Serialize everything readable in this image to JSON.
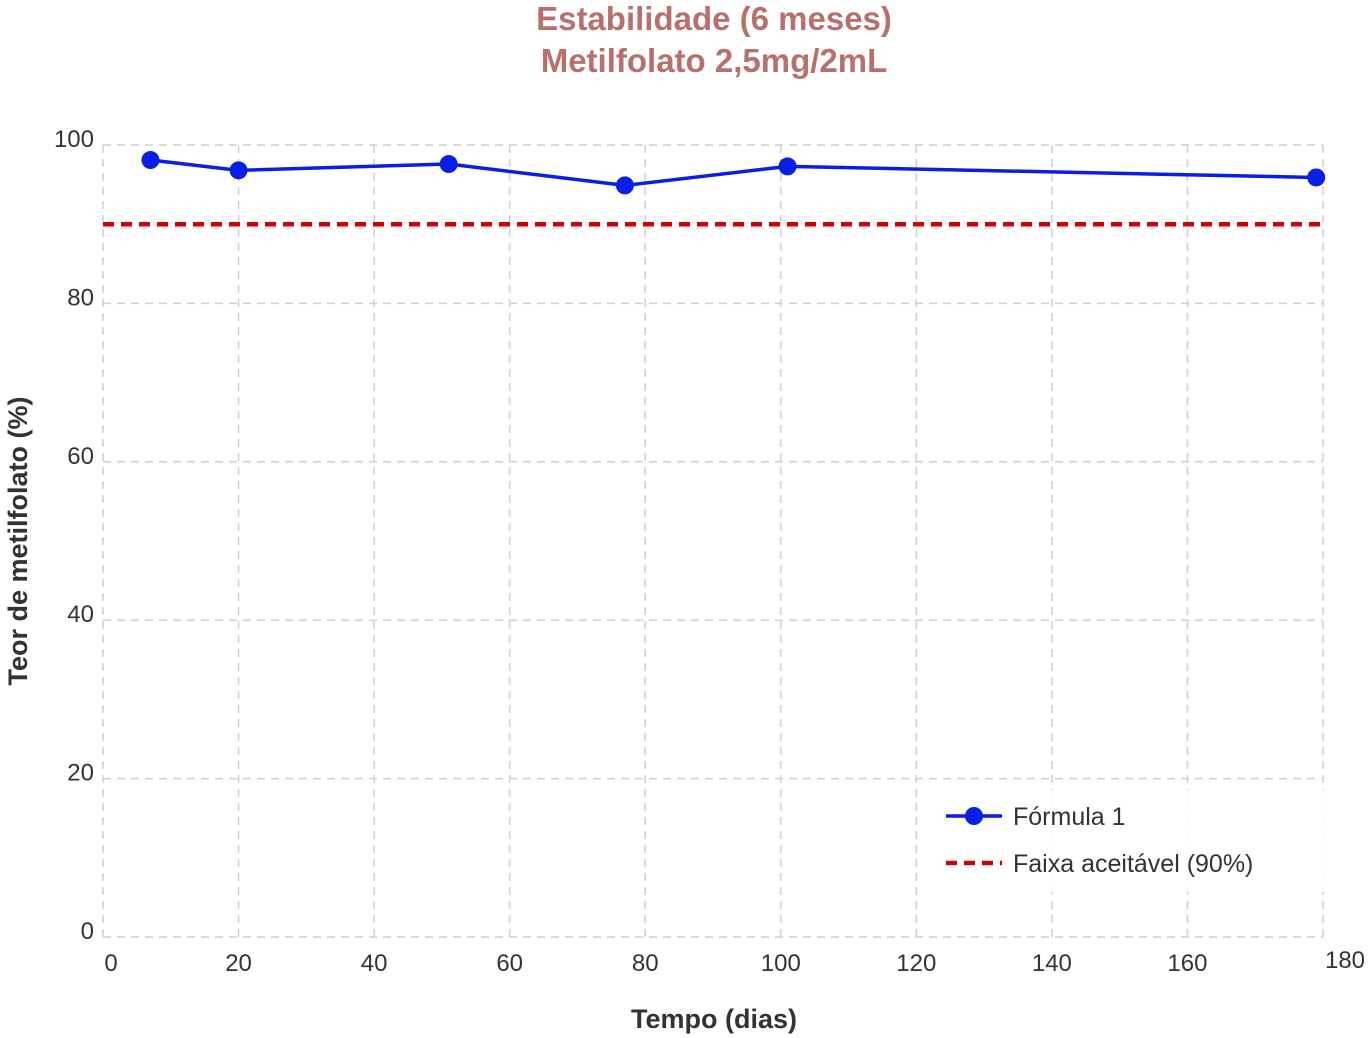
{
  "chart_data": {
    "type": "line",
    "title": "Estabilidade (6 meses)",
    "subtitle": "Metilfolato 2,5mg/2mL",
    "xlabel": "Tempo (dias)",
    "ylabel": "Teor de metilfolato (%)",
    "xlim": [
      0,
      180
    ],
    "ylim": [
      0,
      100
    ],
    "xticks": [
      0,
      20,
      40,
      60,
      80,
      100,
      120,
      140,
      160,
      180
    ],
    "yticks": [
      0,
      20,
      40,
      60,
      80,
      100
    ],
    "xtick_labels": [
      "0",
      "20",
      "40",
      "60",
      "80",
      "100",
      "120",
      "140",
      "160",
      "180"
    ],
    "ytick_labels": [
      "0",
      "20",
      "40",
      "60",
      "80",
      "100"
    ],
    "grid": true,
    "legend_position": "bottom-right",
    "series": [
      {
        "name": "Fórmula 1",
        "color": "#0a1fe6",
        "marker": "circle",
        "x": [
          7,
          20,
          51,
          77,
          101,
          179
        ],
        "y": [
          98.1,
          96.8,
          97.6,
          94.9,
          97.3,
          95.9
        ]
      }
    ],
    "reference_lines": [
      {
        "name": "Faixa aceitável (90%)",
        "y": 90,
        "color": "#d40000",
        "style": "dashed"
      }
    ],
    "colors": {
      "title": "#b8706c",
      "grid": "#d0d0d0",
      "text": "#333333"
    }
  }
}
